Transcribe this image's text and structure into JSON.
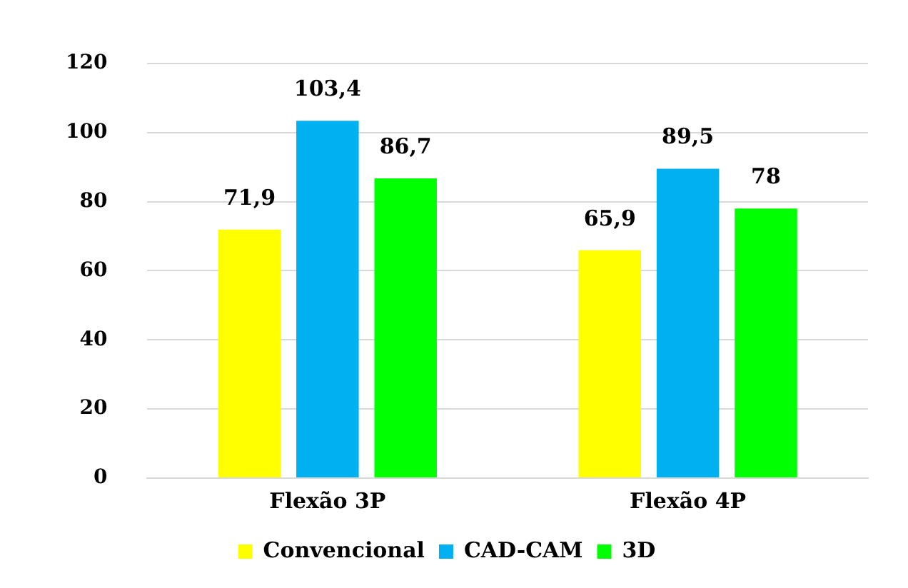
{
  "chart_data": {
    "type": "bar",
    "categories": [
      "Flexão 3P",
      "Flexão 4P"
    ],
    "series": [
      {
        "name": "Convencional",
        "color": "#ffff00",
        "values": [
          71.9,
          65.9
        ],
        "value_labels": [
          "71,9",
          "65,9"
        ]
      },
      {
        "name": "CAD-CAM",
        "color": "#00b0f0",
        "values": [
          103.4,
          89.5
        ],
        "value_labels": [
          "103,4",
          "89,5"
        ]
      },
      {
        "name": "3D",
        "color": "#00ff00",
        "values": [
          86.7,
          78
        ],
        "value_labels": [
          "86,7",
          "78"
        ]
      }
    ],
    "ylim": [
      0,
      120
    ],
    "yticks": [
      0,
      20,
      40,
      60,
      80,
      100,
      120
    ],
    "grid": "y",
    "legend": "bottom"
  }
}
